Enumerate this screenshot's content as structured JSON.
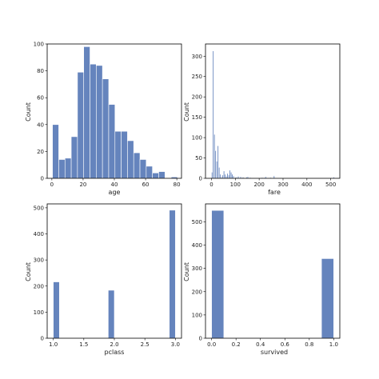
{
  "colors": {
    "bar": "#6584bd",
    "background": "#ffffff",
    "axes": "#000000"
  },
  "chart_data": [
    {
      "type": "bar",
      "xlabel": "age",
      "ylabel": "Count",
      "xlim": [
        -3,
        83
      ],
      "ylim": [
        0,
        100
      ],
      "xticks": [
        0,
        20,
        40,
        60,
        80
      ],
      "yticks": [
        0,
        20,
        40,
        60,
        80,
        100
      ],
      "bins": [
        {
          "x0": 0.4,
          "x1": 4.4,
          "value": 40
        },
        {
          "x0": 4.4,
          "x1": 8.4,
          "value": 14
        },
        {
          "x0": 8.4,
          "x1": 12.4,
          "value": 15
        },
        {
          "x0": 12.4,
          "x1": 16.4,
          "value": 31
        },
        {
          "x0": 16.4,
          "x1": 20.4,
          "value": 79
        },
        {
          "x0": 20.4,
          "x1": 24.4,
          "value": 98
        },
        {
          "x0": 24.4,
          "x1": 28.4,
          "value": 85
        },
        {
          "x0": 28.4,
          "x1": 32.4,
          "value": 84
        },
        {
          "x0": 32.4,
          "x1": 36.4,
          "value": 74
        },
        {
          "x0": 36.4,
          "x1": 40.4,
          "value": 55
        },
        {
          "x0": 40.4,
          "x1": 44.4,
          "value": 35
        },
        {
          "x0": 44.4,
          "x1": 48.4,
          "value": 35
        },
        {
          "x0": 48.4,
          "x1": 52.4,
          "value": 28
        },
        {
          "x0": 52.4,
          "x1": 56.4,
          "value": 19
        },
        {
          "x0": 56.4,
          "x1": 60.4,
          "value": 14
        },
        {
          "x0": 60.4,
          "x1": 64.4,
          "value": 9
        },
        {
          "x0": 64.4,
          "x1": 68.4,
          "value": 4
        },
        {
          "x0": 68.4,
          "x1": 72.4,
          "value": 5
        },
        {
          "x0": 72.4,
          "x1": 76.4,
          "value": 0
        },
        {
          "x0": 76.4,
          "x1": 80.4,
          "value": 1
        }
      ]
    },
    {
      "type": "bar",
      "xlabel": "fare",
      "ylabel": "Count",
      "xlim": [
        -25,
        538
      ],
      "ylim": [
        0,
        330
      ],
      "xticks": [
        0,
        100,
        200,
        300,
        400,
        500
      ],
      "yticks": [
        0,
        50,
        100,
        150,
        200,
        250,
        300
      ],
      "bins": [
        {
          "x0": 0,
          "x1": 5,
          "value": 15
        },
        {
          "x0": 5,
          "x1": 10,
          "value": 313
        },
        {
          "x0": 10,
          "x1": 15,
          "value": 108
        },
        {
          "x0": 15,
          "x1": 20,
          "value": 68
        },
        {
          "x0": 20,
          "x1": 25,
          "value": 42
        },
        {
          "x0": 25,
          "x1": 30,
          "value": 80
        },
        {
          "x0": 30,
          "x1": 35,
          "value": 27
        },
        {
          "x0": 35,
          "x1": 40,
          "value": 10
        },
        {
          "x0": 40,
          "x1": 45,
          "value": 3
        },
        {
          "x0": 45,
          "x1": 50,
          "value": 8
        },
        {
          "x0": 50,
          "x1": 55,
          "value": 18
        },
        {
          "x0": 55,
          "x1": 60,
          "value": 10
        },
        {
          "x0": 60,
          "x1": 65,
          "value": 5
        },
        {
          "x0": 65,
          "x1": 70,
          "value": 12
        },
        {
          "x0": 70,
          "x1": 75,
          "value": 8
        },
        {
          "x0": 75,
          "x1": 80,
          "value": 20
        },
        {
          "x0": 80,
          "x1": 85,
          "value": 15
        },
        {
          "x0": 85,
          "x1": 90,
          "value": 10
        },
        {
          "x0": 90,
          "x1": 95,
          "value": 6
        },
        {
          "x0": 100,
          "x1": 105,
          "value": 3
        },
        {
          "x0": 105,
          "x1": 110,
          "value": 2
        },
        {
          "x0": 110,
          "x1": 115,
          "value": 5
        },
        {
          "x0": 120,
          "x1": 125,
          "value": 4
        },
        {
          "x0": 130,
          "x1": 135,
          "value": 3
        },
        {
          "x0": 145,
          "x1": 150,
          "value": 3
        },
        {
          "x0": 150,
          "x1": 155,
          "value": 4
        },
        {
          "x0": 160,
          "x1": 165,
          "value": 2
        },
        {
          "x0": 210,
          "x1": 215,
          "value": 2
        },
        {
          "x0": 220,
          "x1": 225,
          "value": 2
        },
        {
          "x0": 225,
          "x1": 230,
          "value": 4
        },
        {
          "x0": 245,
          "x1": 250,
          "value": 2
        },
        {
          "x0": 260,
          "x1": 265,
          "value": 6
        },
        {
          "x0": 510,
          "x1": 515,
          "value": 3
        }
      ]
    },
    {
      "type": "bar",
      "xlabel": "pclass",
      "ylabel": "Count",
      "xlim": [
        0.9,
        3.1
      ],
      "ylim": [
        0,
        515
      ],
      "xticks": [
        1.0,
        1.5,
        2.0,
        2.5,
        3.0
      ],
      "xtick_labels": [
        "1.0",
        "1.5",
        "2.0",
        "2.5",
        "3.0"
      ],
      "yticks": [
        0,
        100,
        200,
        300,
        400,
        500
      ],
      "bins": [
        {
          "x0": 1.0,
          "x1": 1.1,
          "value": 216
        },
        {
          "x0": 1.9,
          "x1": 2.0,
          "value": 184
        },
        {
          "x0": 2.9,
          "x1": 3.0,
          "value": 491
        }
      ]
    },
    {
      "type": "bar",
      "xlabel": "survived",
      "ylabel": "Count",
      "xlim": [
        -0.05,
        1.05
      ],
      "ylim": [
        0,
        577
      ],
      "xticks": [
        0.0,
        0.2,
        0.4,
        0.6,
        0.8,
        1.0
      ],
      "xtick_labels": [
        "0.0",
        "0.2",
        "0.4",
        "0.6",
        "0.8",
        "1.0"
      ],
      "yticks": [
        0,
        100,
        200,
        300,
        400,
        500
      ],
      "bins": [
        {
          "x0": 0.0,
          "x1": 0.1,
          "value": 549
        },
        {
          "x0": 0.9,
          "x1": 1.0,
          "value": 342
        }
      ]
    }
  ]
}
